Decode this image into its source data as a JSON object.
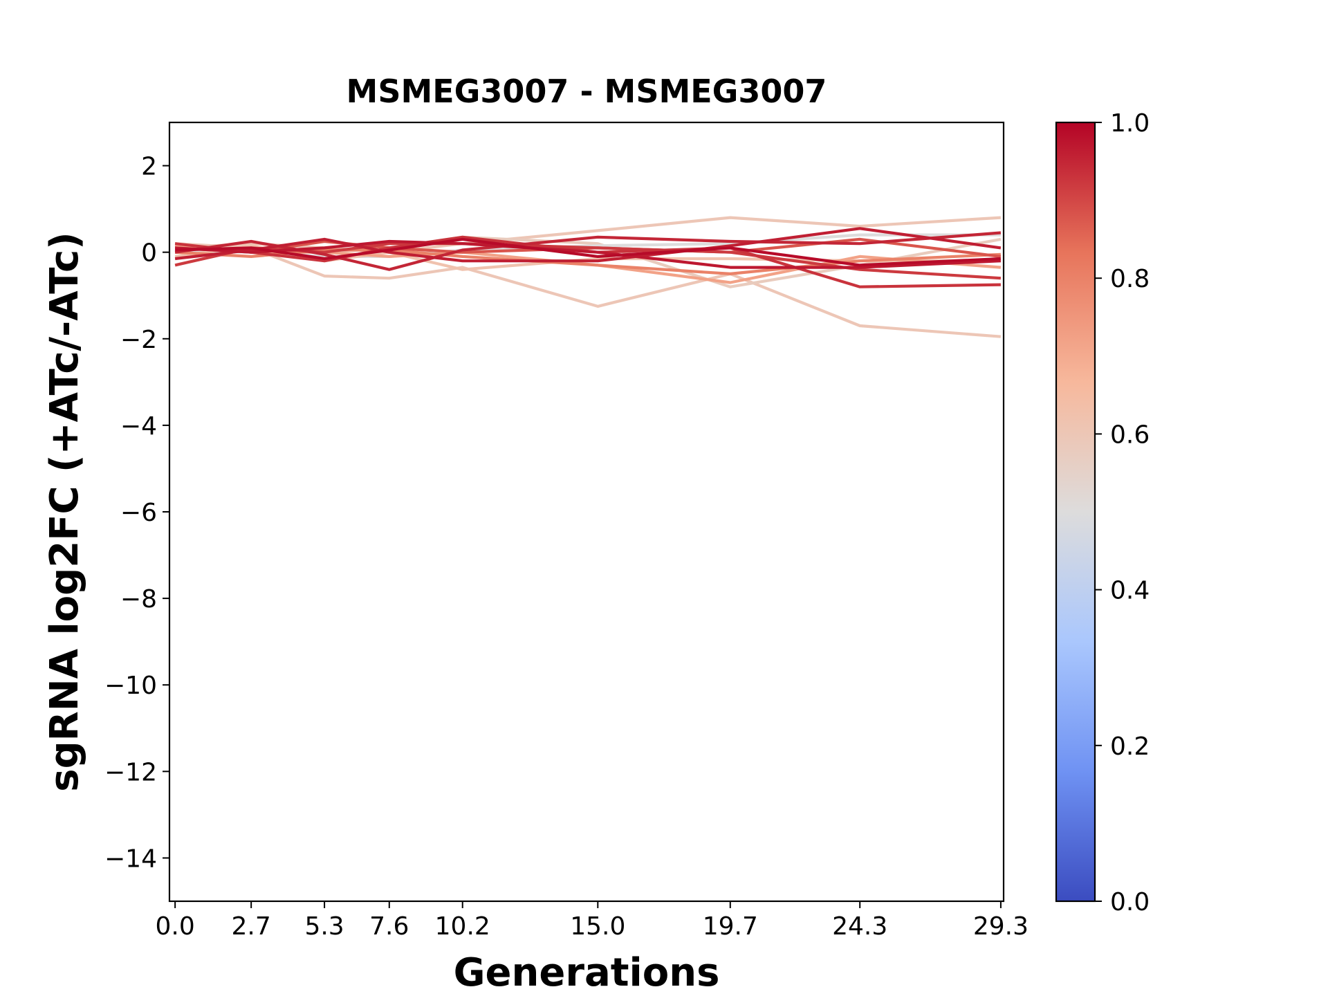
{
  "chart_data": {
    "type": "line",
    "title": "MSMEG3007 - MSMEG3007",
    "xlabel": "Generations",
    "ylabel": "sgRNA log2FC (+ATc/-ATc)",
    "x": [
      0.0,
      2.7,
      5.3,
      7.6,
      10.2,
      15.0,
      19.7,
      24.3,
      29.3
    ],
    "x_tick_labels": [
      "0.0",
      "2.7",
      "5.3",
      "7.6",
      "10.2",
      "15.0",
      "19.7",
      "24.3",
      "29.3"
    ],
    "xlim": [
      -0.2,
      29.4
    ],
    "ylim": [
      -15,
      3
    ],
    "y_ticks": [
      2,
      0,
      -2,
      -4,
      -6,
      -8,
      -10,
      -12,
      -14
    ],
    "y_tick_labels": [
      "2",
      "0",
      "−2",
      "−4",
      "−6",
      "−8",
      "−10",
      "−12",
      "−14"
    ],
    "grid": false,
    "colormap": {
      "name": "coolwarm",
      "range": [
        0.0,
        1.0
      ],
      "ticks": [
        0.0,
        0.2,
        0.4,
        0.6,
        0.8,
        1.0
      ],
      "tick_labels": [
        "0.0",
        "0.2",
        "0.4",
        "0.6",
        "0.8",
        "1.0"
      ],
      "stops": [
        "#3b4cc0",
        "#6f92f3",
        "#aac7fd",
        "#dddcdc",
        "#f7b89c",
        "#e7745b",
        "#b40426"
      ]
    },
    "series": [
      {
        "color_value": 0.6,
        "values": [
          0.2,
          0.1,
          -0.55,
          -0.6,
          -0.35,
          -1.25,
          -0.5,
          -1.7,
          -1.95
        ]
      },
      {
        "color_value": 0.6,
        "values": [
          0.1,
          0.2,
          0.1,
          0.0,
          0.2,
          0.5,
          0.8,
          0.6,
          0.8
        ]
      },
      {
        "color_value": 0.58,
        "values": [
          0.0,
          0.1,
          0.0,
          0.1,
          0.35,
          0.2,
          -0.8,
          -0.3,
          0.3
        ]
      },
      {
        "color_value": 0.5,
        "values": [
          0.05,
          0.0,
          -0.1,
          -0.1,
          0.05,
          0.15,
          0.2,
          0.4,
          0.4
        ]
      },
      {
        "color_value": 0.62,
        "values": [
          -0.1,
          0.15,
          -0.2,
          0.0,
          -0.4,
          -0.15,
          -0.15,
          -0.2,
          -0.2
        ]
      },
      {
        "color_value": 0.72,
        "values": [
          0.15,
          0.0,
          0.0,
          -0.1,
          0.0,
          -0.3,
          -0.7,
          -0.1,
          -0.35
        ]
      },
      {
        "color_value": 0.8,
        "values": [
          0.0,
          -0.1,
          0.05,
          0.05,
          -0.1,
          -0.3,
          -0.5,
          -0.2,
          -0.05
        ]
      },
      {
        "color_value": 0.88,
        "values": [
          0.1,
          0.0,
          0.25,
          0.1,
          0.0,
          0.1,
          0.0,
          0.3,
          -0.1
        ]
      },
      {
        "color_value": 0.92,
        "values": [
          -0.3,
          0.1,
          0.0,
          0.2,
          0.2,
          0.1,
          0.0,
          -0.4,
          -0.6
        ]
      },
      {
        "color_value": 0.93,
        "values": [
          0.2,
          0.0,
          -0.2,
          0.1,
          0.35,
          0.0,
          0.1,
          -0.8,
          -0.75
        ]
      },
      {
        "color_value": 0.95,
        "values": [
          0.0,
          0.25,
          -0.05,
          -0.4,
          0.05,
          0.35,
          0.25,
          0.2,
          0.45
        ]
      },
      {
        "color_value": 0.96,
        "values": [
          -0.15,
          0.05,
          0.3,
          0.0,
          -0.2,
          -0.2,
          0.15,
          0.55,
          0.1
        ]
      },
      {
        "color_value": 0.97,
        "values": [
          0.1,
          0.0,
          0.1,
          0.25,
          0.2,
          0.0,
          -0.35,
          -0.35,
          -0.2
        ]
      },
      {
        "color_value": 0.99,
        "values": [
          0.05,
          0.1,
          -0.15,
          0.05,
          0.3,
          -0.1,
          0.1,
          -0.3,
          -0.15
        ]
      }
    ]
  }
}
